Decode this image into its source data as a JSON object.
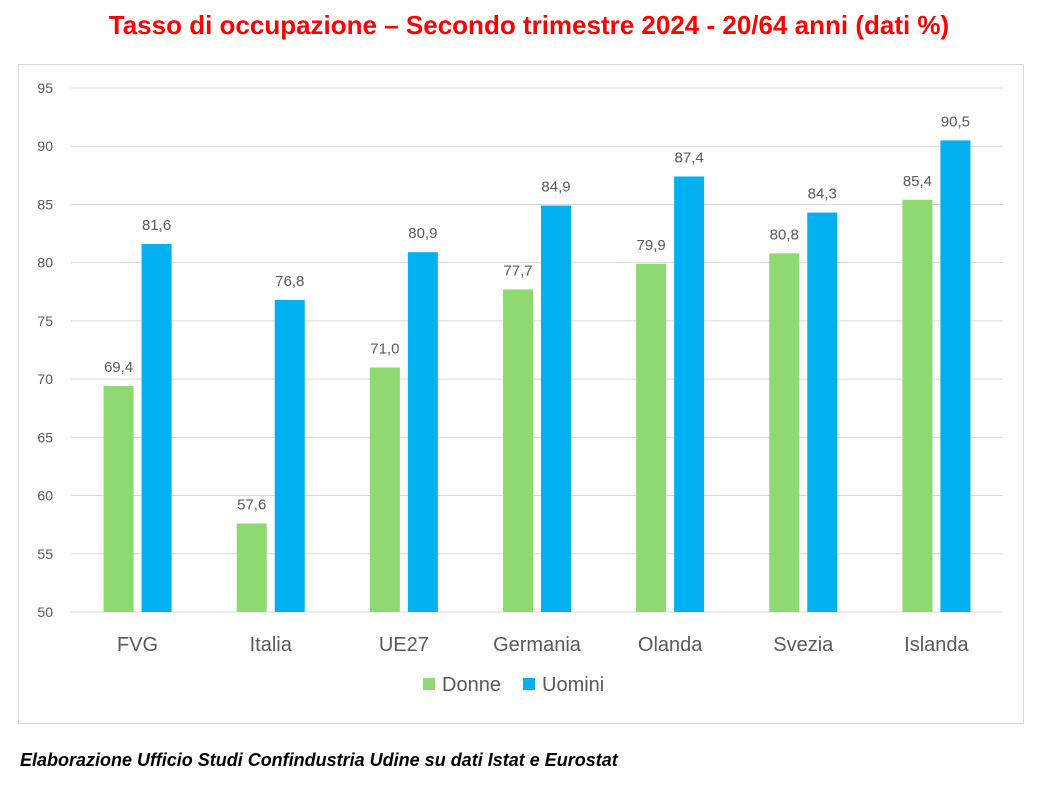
{
  "title": "Tasso di occupazione – Secondo trimestre 2024 - 20/64 anni (dati %)",
  "footer": "Elaborazione Ufficio Studi Confindustria Udine su dati Istat e Eurostat",
  "colors": {
    "donne": "#8fd973",
    "uomini": "#00b0f0",
    "grid": "#d9d9d9",
    "tick": "#595959"
  },
  "chart_data": {
    "type": "bar",
    "title": "Tasso di occupazione – Secondo trimestre 2024 - 20/64 anni (dati %)",
    "categories": [
      "FVG",
      "Italia",
      "UE27",
      "Germania",
      "Olanda",
      "Svezia",
      "Islanda"
    ],
    "series": [
      {
        "name": "Donne",
        "values": [
          69.4,
          57.6,
          71.0,
          77.7,
          79.9,
          80.8,
          85.4
        ],
        "labels": [
          "69,4",
          "57,6",
          "71,0",
          "77,7",
          "79,9",
          "80,8",
          "85,4"
        ]
      },
      {
        "name": "Uomini",
        "values": [
          81.6,
          76.8,
          80.9,
          84.9,
          87.4,
          84.3,
          90.5
        ],
        "labels": [
          "81,6",
          "76,8",
          "80,9",
          "84,9",
          "87,4",
          "84,3",
          "90,5"
        ]
      }
    ],
    "ylim": [
      50,
      95
    ],
    "yticks": [
      50,
      55,
      60,
      65,
      70,
      75,
      80,
      85,
      90,
      95
    ],
    "grid": true,
    "legend": "bottom",
    "xlabel": "",
    "ylabel": ""
  }
}
